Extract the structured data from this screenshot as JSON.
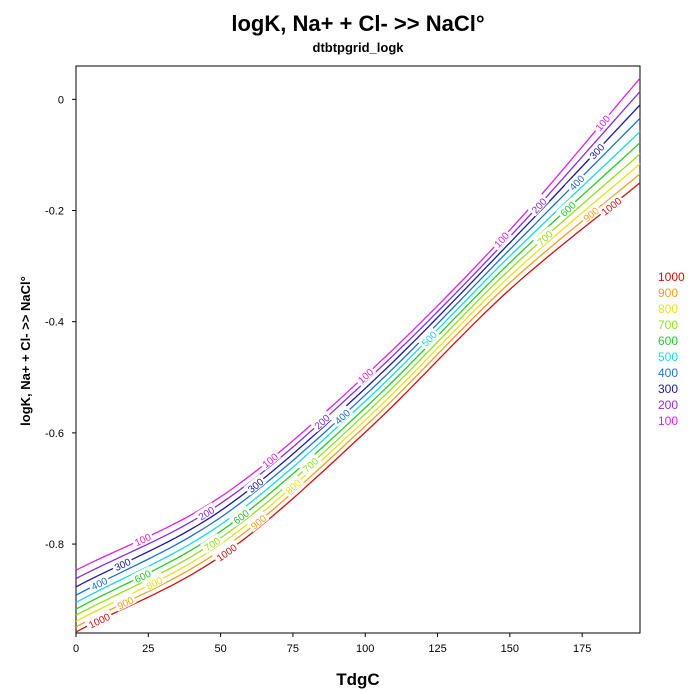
{
  "chart_data": {
    "type": "line",
    "title": "logK, Na+ + Cl- >> NaCl°",
    "subtitle": "dtbtpgrid_logk",
    "xlabel": "TdgC",
    "ylabel": "logK, Na+ + Cl- >> NaCl°",
    "xlim": [
      0,
      195
    ],
    "ylim": [
      -0.96,
      0.06
    ],
    "xticks": [
      0,
      25,
      50,
      75,
      100,
      125,
      150,
      175
    ],
    "yticks": [
      0,
      -0.2,
      -0.4,
      -0.6,
      -0.8
    ],
    "ytick_labels": [
      "0",
      "-0.2",
      "-0.4",
      "-0.6",
      "-0.8"
    ],
    "grid": false,
    "legend_position": "right",
    "legend_order": [
      "1000",
      "900",
      "800",
      "700",
      "600",
      "500",
      "400",
      "300",
      "200",
      "100"
    ],
    "series": [
      {
        "name": "100",
        "color": "#e020e0",
        "x": [
          0,
          50,
          100,
          150,
          195
        ],
        "y": [
          -0.847,
          -0.715,
          -0.497,
          -0.235,
          0.038
        ]
      },
      {
        "name": "200",
        "color": "#8a2be2",
        "x": [
          0,
          50,
          100,
          150,
          195
        ],
        "y": [
          -0.862,
          -0.727,
          -0.508,
          -0.247,
          0.014
        ]
      },
      {
        "name": "300",
        "color": "#1a1a9c",
        "x": [
          0,
          50,
          100,
          150,
          195
        ],
        "y": [
          -0.877,
          -0.74,
          -0.52,
          -0.258,
          -0.01
        ]
      },
      {
        "name": "400",
        "color": "#1f6fd0",
        "x": [
          0,
          50,
          100,
          150,
          195
        ],
        "y": [
          -0.892,
          -0.752,
          -0.532,
          -0.27,
          -0.034
        ]
      },
      {
        "name": "500",
        "color": "#18d8e8",
        "x": [
          0,
          50,
          100,
          150,
          195
        ],
        "y": [
          -0.905,
          -0.765,
          -0.543,
          -0.282,
          -0.058
        ]
      },
      {
        "name": "600",
        "color": "#28c828",
        "x": [
          0,
          50,
          100,
          150,
          195
        ],
        "y": [
          -0.917,
          -0.777,
          -0.555,
          -0.294,
          -0.078
        ]
      },
      {
        "name": "700",
        "color": "#90e020",
        "x": [
          0,
          50,
          100,
          150,
          195
        ],
        "y": [
          -0.928,
          -0.789,
          -0.566,
          -0.306,
          -0.098
        ]
      },
      {
        "name": "800",
        "color": "#e8e020",
        "x": [
          0,
          50,
          100,
          150,
          195
        ],
        "y": [
          -0.939,
          -0.8,
          -0.577,
          -0.318,
          -0.116
        ]
      },
      {
        "name": "900",
        "color": "#f0a020",
        "x": [
          0,
          50,
          100,
          150,
          195
        ],
        "y": [
          -0.949,
          -0.811,
          -0.588,
          -0.33,
          -0.134
        ]
      },
      {
        "name": "1000",
        "color": "#d01010",
        "x": [
          0,
          50,
          100,
          150,
          195
        ],
        "y": [
          -0.958,
          -0.822,
          -0.599,
          -0.342,
          -0.15
        ]
      }
    ],
    "contour_labels": [
      {
        "text": "100",
        "series": "100",
        "x": [
          23,
          67,
          100,
          147,
          182
        ]
      },
      {
        "text": "200",
        "series": "200",
        "x": [
          45,
          85,
          160
        ]
      },
      {
        "text": "300",
        "series": "300",
        "x": [
          16,
          62,
          180
        ]
      },
      {
        "text": "400",
        "series": "400",
        "x": [
          8,
          92,
          173
        ]
      },
      {
        "text": "500",
        "series": "500",
        "x": [
          122
        ]
      },
      {
        "text": "600",
        "series": "600",
        "x": [
          23,
          57,
          170
        ]
      },
      {
        "text": "700",
        "series": "700",
        "x": [
          47,
          81,
          162
        ]
      },
      {
        "text": "800",
        "series": "800",
        "x": [
          27,
          75
        ]
      },
      {
        "text": "900",
        "series": "900",
        "x": [
          17,
          63,
          178
        ]
      },
      {
        "text": "1000",
        "series": "1000",
        "x": [
          8,
          52,
          185
        ]
      }
    ]
  }
}
